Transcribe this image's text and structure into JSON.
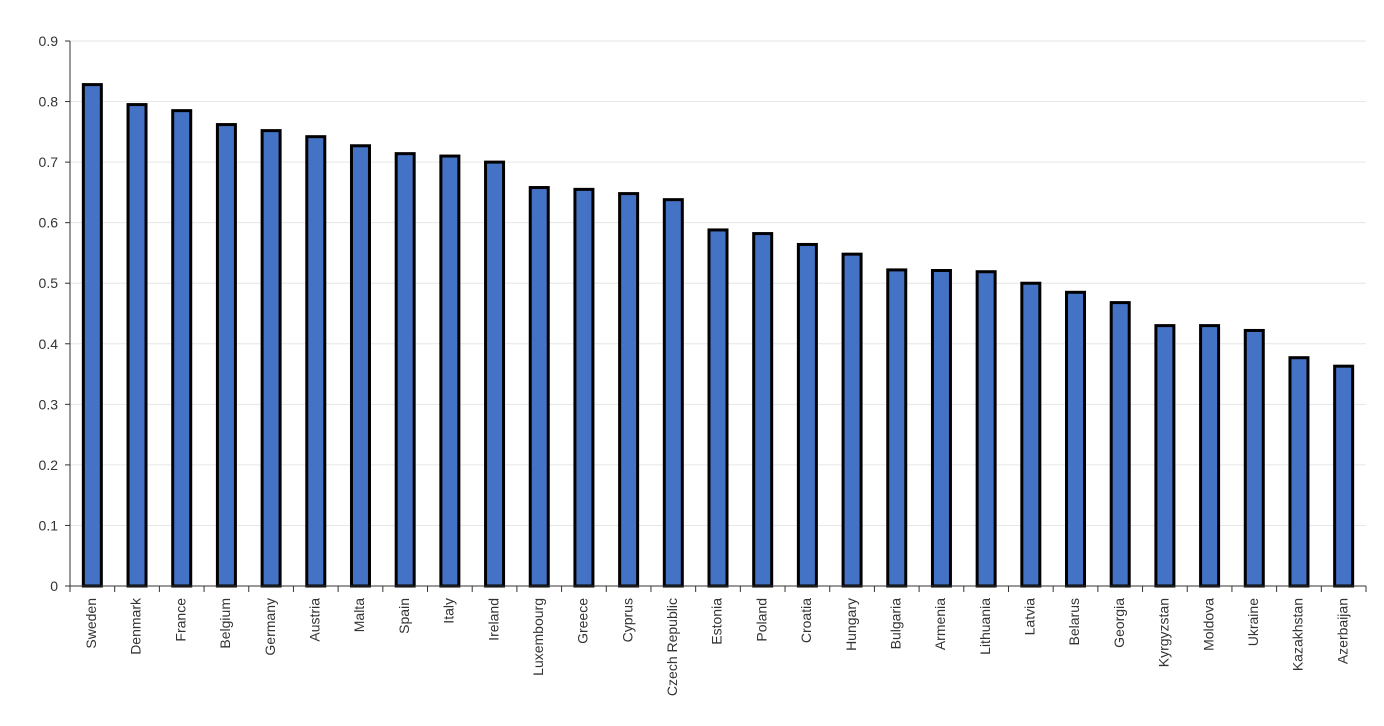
{
  "chart_data": {
    "type": "bar",
    "title": "",
    "xlabel": "",
    "ylabel": "",
    "ylim": [
      0,
      0.9
    ],
    "yticks": [
      "0",
      "0.1",
      "0.2",
      "0.3",
      "0.4",
      "0.5",
      "0.6",
      "0.7",
      "0.8",
      "0.9"
    ],
    "grid": true,
    "bar_color": "#4472C4",
    "bar_outline_color": "#000000",
    "categories": [
      "Sweden",
      "Denmark",
      "France",
      "Belgium",
      "Germany",
      "Austria",
      "Malta",
      "Spain",
      "Italy",
      "Ireland",
      "Luxembourg",
      "Greece",
      "Cyprus",
      "Czech Republic",
      "Estonia",
      "Poland",
      "Croatia",
      "Hungary",
      "Bulgaria",
      "Armenia",
      "Lithuania",
      "Latvia",
      "Belarus",
      "Georgia",
      "Kyrgyzstan",
      "Moldova",
      "Ukraine",
      "Kazakhstan",
      "Azerbaijan"
    ],
    "values": [
      0.828,
      0.795,
      0.785,
      0.762,
      0.752,
      0.742,
      0.727,
      0.714,
      0.71,
      0.7,
      0.658,
      0.655,
      0.648,
      0.638,
      0.588,
      0.582,
      0.564,
      0.548,
      0.522,
      0.521,
      0.519,
      0.5,
      0.485,
      0.468,
      0.43,
      0.43,
      0.422,
      0.377,
      0.363
    ]
  }
}
